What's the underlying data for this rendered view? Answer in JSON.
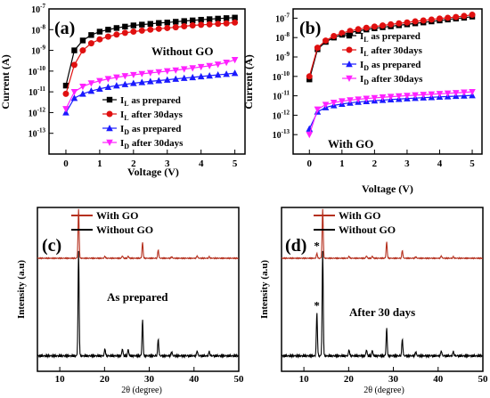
{
  "panels": [
    {
      "label": "(a)",
      "note": "Without GO",
      "xlabel": "Voltage (V)",
      "ylabel": "Current (A)",
      "legend": [
        {
          "main": "I",
          "sub": "L",
          "rest": " as prepared"
        },
        {
          "main": "I",
          "sub": "L",
          "rest": " after 30days"
        },
        {
          "main": "I",
          "sub": "D",
          "rest": " as prepared"
        },
        {
          "main": "I",
          "sub": "D",
          "rest": " after 30days"
        }
      ]
    },
    {
      "label": "(b)",
      "note": "With GO",
      "xlabel": "Voltage (V)",
      "ylabel": "Current (A)",
      "legend": [
        {
          "main": "I",
          "sub": "L",
          "rest": " as prepared"
        },
        {
          "main": "I",
          "sub": "L",
          "rest": " after 30days"
        },
        {
          "main": "I",
          "sub": "D",
          "rest": " as prepared"
        },
        {
          "main": "I",
          "sub": "D",
          "rest": " after 30days"
        }
      ]
    },
    {
      "label": "(c)",
      "note": "As prepared",
      "xlabel": "2θ (degree)",
      "ylabel": "Intensity (a.u)",
      "legend": [
        {
          "main": "With GO",
          "sub": "",
          "rest": ""
        },
        {
          "main": "Without GO",
          "sub": "",
          "rest": ""
        }
      ]
    },
    {
      "label": "(d)",
      "note": "After 30 days",
      "xlabel": "2θ (degree)",
      "ylabel": "Intensity (a.u)",
      "legend": [
        {
          "main": "With GO",
          "sub": "",
          "rest": ""
        },
        {
          "main": "Without GO",
          "sub": "",
          "rest": ""
        }
      ]
    }
  ],
  "chart_data": [
    {
      "type": "scatter",
      "panel": "(a)",
      "yscale": "log",
      "xlim": [
        -0.5,
        5.3
      ],
      "ylim": [
        1e-14,
        1e-07
      ],
      "xticks": [
        0,
        1,
        2,
        3,
        4,
        5
      ],
      "xticklabels": [
        "0",
        "1",
        "2",
        "3",
        "4",
        "5"
      ],
      "yticks": [
        1e-13,
        1e-12,
        1e-11,
        1e-10,
        1e-09,
        1e-08,
        1e-07
      ],
      "yticklabels": [
        [
          "10",
          "-13"
        ],
        [
          "10",
          "-12"
        ],
        [
          "10",
          "-11"
        ],
        [
          "10",
          "-10"
        ],
        [
          "10",
          "-9"
        ],
        [
          "10",
          "-8"
        ],
        [
          "10",
          "-7"
        ]
      ],
      "x": [
        0,
        0.25,
        0.5,
        0.75,
        1,
        1.25,
        1.5,
        1.75,
        2,
        2.25,
        2.5,
        2.75,
        3,
        3.25,
        3.5,
        3.75,
        4,
        4.25,
        4.5,
        4.75,
        5
      ],
      "series": [
        {
          "name": "I_L as prepared",
          "color": "#000000",
          "marker": "square",
          "values": [
            2e-11,
            1e-09,
            3e-09,
            5.5e-09,
            8e-09,
            1e-08,
            1.2e-08,
            1.4e-08,
            1.6e-08,
            1.75e-08,
            1.9e-08,
            2.1e-08,
            2.2e-08,
            2.4e-08,
            2.6e-08,
            2.8e-08,
            3e-08,
            3.2e-08,
            3.4e-08,
            3.6e-08,
            3.8e-08
          ]
        },
        {
          "name": "I_L after 30days",
          "color": "#e01010",
          "marker": "circle",
          "values": [
            8e-12,
            2e-10,
            1e-09,
            2.2e-09,
            3.4e-09,
            4.6e-09,
            5.8e-09,
            7e-09,
            8e-09,
            9e-09,
            1e-08,
            1.1e-08,
            1.2e-08,
            1.3e-08,
            1.45e-08,
            1.6e-08,
            1.7e-08,
            1.8e-08,
            1.9e-08,
            2e-08,
            2.2e-08
          ]
        },
        {
          "name": "I_D as prepared",
          "color": "#1a1aff",
          "marker": "triangle-up",
          "values": [
            1e-12,
            5e-12,
            8e-12,
            1.1e-11,
            1.4e-11,
            1.7e-11,
            2e-11,
            2.3e-11,
            2.6e-11,
            2.9e-11,
            3.2e-11,
            3.5e-11,
            3.8e-11,
            4.2e-11,
            4.6e-11,
            5e-11,
            5.5e-11,
            6e-11,
            6.6e-11,
            7.2e-11,
            8e-11
          ]
        },
        {
          "name": "I_D after 30days",
          "color": "#ff22ff",
          "marker": "triangle-down",
          "values": [
            1.5e-12,
            1e-11,
            1.8e-11,
            2.6e-11,
            3.4e-11,
            4.2e-11,
            5e-11,
            5.8e-11,
            6.6e-11,
            7.4e-11,
            8.2e-11,
            9e-11,
            1e-10,
            1.1e-10,
            1.25e-10,
            1.4e-10,
            1.6e-10,
            1.8e-10,
            2.1e-10,
            2.6e-10,
            3.5e-10
          ]
        }
      ]
    },
    {
      "type": "scatter",
      "panel": "(b)",
      "yscale": "log",
      "xlim": [
        -0.5,
        5.3
      ],
      "ylim": [
        1e-14,
        3e-07
      ],
      "xticks": [
        0,
        1,
        2,
        3,
        4,
        5
      ],
      "xticklabels": [
        "0",
        "1",
        "2",
        "3",
        "4",
        "5"
      ],
      "yticks": [
        1e-13,
        1e-12,
        1e-11,
        1e-10,
        1e-09,
        1e-08,
        1e-07
      ],
      "yticklabels": [
        [
          "10",
          "-13"
        ],
        [
          "10",
          "-12"
        ],
        [
          "10",
          "-11"
        ],
        [
          "10",
          "-10"
        ],
        [
          "10",
          "-9"
        ],
        [
          "10",
          "-8"
        ],
        [
          "10",
          "-7"
        ]
      ],
      "x": [
        0,
        0.25,
        0.5,
        0.75,
        1,
        1.25,
        1.5,
        1.75,
        2,
        2.25,
        2.5,
        2.75,
        3,
        3.25,
        3.5,
        3.75,
        4,
        4.25,
        4.5,
        4.75,
        5
      ],
      "series": [
        {
          "name": "I_L as prepared",
          "color": "#000000",
          "marker": "square",
          "values": [
            7e-11,
            2.5e-09,
            6e-09,
            1e-08,
            1.4e-08,
            1.8e-08,
            2.2e-08,
            2.6e-08,
            3e-08,
            3.4e-08,
            3.8e-08,
            4.3e-08,
            4.8e-08,
            5.4e-08,
            6e-08,
            6.8e-08,
            7.6e-08,
            8.5e-08,
            9.5e-08,
            1.05e-07,
            1.2e-07
          ]
        },
        {
          "name": "I_L after 30days",
          "color": "#e01010",
          "marker": "circle",
          "values": [
            1e-10,
            3e-09,
            7e-09,
            1.2e-08,
            1.7e-08,
            2.2e-08,
            2.7e-08,
            3.2e-08,
            3.7e-08,
            4.2e-08,
            4.8e-08,
            5.4e-08,
            6e-08,
            6.8e-08,
            7.6e-08,
            8.5e-08,
            9.5e-08,
            1.05e-07,
            1.15e-07,
            1.3e-07,
            1.5e-07
          ]
        },
        {
          "name": "I_D as prepared",
          "color": "#1a1aff",
          "marker": "triangle-up",
          "values": [
            2e-13,
            1.5e-12,
            2.5e-12,
            3.2e-12,
            3.8e-12,
            4.3e-12,
            4.8e-12,
            5.2e-12,
            5.6e-12,
            6e-12,
            6.4e-12,
            6.8e-12,
            7.2e-12,
            7.6e-12,
            8e-12,
            8.4e-12,
            8.8e-12,
            9.2e-12,
            9.6e-12,
            1e-11,
            1.05e-11
          ]
        },
        {
          "name": "I_D after 30days",
          "color": "#ff22ff",
          "marker": "triangle-down",
          "values": [
            1e-13,
            2e-12,
            3.5e-12,
            4.5e-12,
            5.3e-12,
            6e-12,
            6.6e-12,
            7.2e-12,
            7.8e-12,
            8.4e-12,
            9e-12,
            9.6e-12,
            1.02e-11,
            1.08e-11,
            1.14e-11,
            1.2e-11,
            1.27e-11,
            1.34e-11,
            1.42e-11,
            1.5e-11,
            1.6e-11
          ]
        }
      ]
    },
    {
      "type": "line",
      "panel": "(c)",
      "xlim": [
        5,
        50
      ],
      "xticks": [
        10,
        20,
        30,
        40,
        50
      ],
      "xticklabels": [
        "10",
        "20",
        "30",
        "40",
        "50"
      ],
      "yticks": [],
      "series": [
        {
          "name": "With GO",
          "color": "#b5301e",
          "baseline": 0.69,
          "peaks": [
            [
              14.2,
              1.0
            ],
            [
              20.1,
              0.04
            ],
            [
              24.0,
              0.05
            ],
            [
              25.3,
              0.04
            ],
            [
              28.5,
              0.32
            ],
            [
              32.0,
              0.17
            ],
            [
              35.0,
              0.03
            ],
            [
              40.7,
              0.05
            ],
            [
              43.4,
              0.03
            ]
          ]
        },
        {
          "name": "Without GO",
          "color": "#000000",
          "baseline": 0.04,
          "peaks": [
            [
              14.2,
              1.0
            ],
            [
              20.1,
              0.07
            ],
            [
              24.0,
              0.07
            ],
            [
              25.3,
              0.06
            ],
            [
              28.5,
              0.34
            ],
            [
              32.0,
              0.16
            ],
            [
              35.0,
              0.04
            ],
            [
              40.7,
              0.05
            ],
            [
              43.4,
              0.04
            ]
          ]
        }
      ]
    },
    {
      "type": "line",
      "panel": "(d)",
      "xlim": [
        5,
        50
      ],
      "xticks": [
        10,
        20,
        30,
        40,
        50
      ],
      "xticklabels": [
        "10",
        "20",
        "30",
        "40",
        "50"
      ],
      "yticks": [],
      "annotation": "*",
      "annotation_x": 12.9,
      "series": [
        {
          "name": "With GO",
          "color": "#b5301e",
          "baseline": 0.69,
          "peaks": [
            [
              12.9,
              0.1
            ],
            [
              14.2,
              1.0
            ],
            [
              20.1,
              0.04
            ],
            [
              24.0,
              0.05
            ],
            [
              25.3,
              0.04
            ],
            [
              28.5,
              0.33
            ],
            [
              32.0,
              0.16
            ],
            [
              35.0,
              0.03
            ],
            [
              40.7,
              0.05
            ],
            [
              43.4,
              0.03
            ]
          ]
        },
        {
          "name": "Without GO",
          "color": "#000000",
          "baseline": 0.04,
          "peaks": [
            [
              12.9,
              0.41
            ],
            [
              14.2,
              1.0
            ],
            [
              20.1,
              0.06
            ],
            [
              24.0,
              0.06
            ],
            [
              25.3,
              0.05
            ],
            [
              28.5,
              0.26
            ],
            [
              32.0,
              0.16
            ],
            [
              35.0,
              0.04
            ],
            [
              40.7,
              0.05
            ],
            [
              43.4,
              0.04
            ]
          ]
        }
      ]
    }
  ]
}
